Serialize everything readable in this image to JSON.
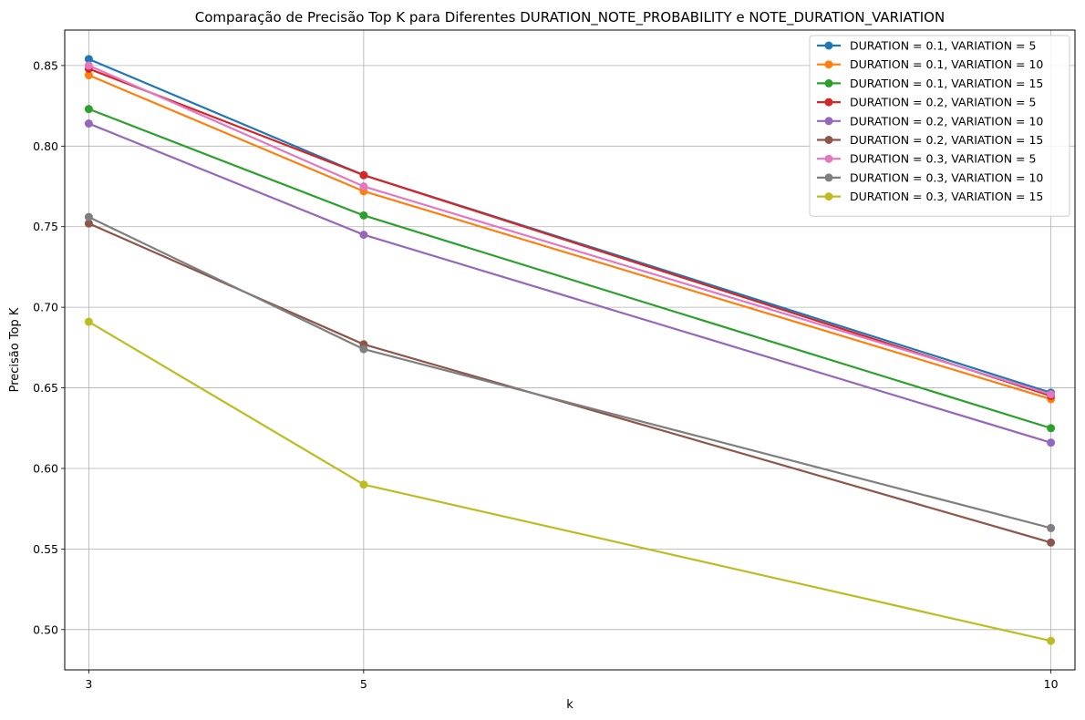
{
  "chart_data": {
    "type": "line",
    "title": "Comparação de Precisão Top K para Diferentes DURATION_NOTE_PROBABILITY e NOTE_DURATION_VARIATION",
    "xlabel": "k",
    "ylabel": "Precisão Top K",
    "x": [
      3,
      5,
      10
    ],
    "xticks": [
      3,
      5,
      10
    ],
    "xtick_labels": [
      "3",
      "5",
      "10"
    ],
    "xlim": [
      2.825,
      10.175
    ],
    "ylim": [
      0.475,
      0.872
    ],
    "yticks": [
      0.5,
      0.55,
      0.6,
      0.65,
      0.7,
      0.75,
      0.8,
      0.85
    ],
    "ytick_labels": [
      "0.50",
      "0.55",
      "0.60",
      "0.65",
      "0.70",
      "0.75",
      "0.80",
      "0.85"
    ],
    "grid": true,
    "legend_position": "top-right",
    "series": [
      {
        "name": "DURATION = 0.1, VARIATION = 5",
        "color": "#1f77b4",
        "values": [
          0.854,
          0.782,
          0.647
        ]
      },
      {
        "name": "DURATION = 0.1, VARIATION = 10",
        "color": "#ff7f0e",
        "values": [
          0.844,
          0.772,
          0.643
        ]
      },
      {
        "name": "DURATION = 0.1, VARIATION = 15",
        "color": "#2ca02c",
        "values": [
          0.823,
          0.757,
          0.625
        ]
      },
      {
        "name": "DURATION = 0.2, VARIATION = 5",
        "color": "#d62728",
        "values": [
          0.848,
          0.782,
          0.645
        ]
      },
      {
        "name": "DURATION = 0.2, VARIATION = 10",
        "color": "#9467bd",
        "values": [
          0.814,
          0.745,
          0.616
        ]
      },
      {
        "name": "DURATION = 0.2, VARIATION = 15",
        "color": "#8c564b",
        "values": [
          0.752,
          0.677,
          0.554
        ]
      },
      {
        "name": "DURATION = 0.3, VARIATION = 5",
        "color": "#e377c2",
        "values": [
          0.85,
          0.775,
          0.646
        ]
      },
      {
        "name": "DURATION = 0.3, VARIATION = 10",
        "color": "#7f7f7f",
        "values": [
          0.756,
          0.674,
          0.563
        ]
      },
      {
        "name": "DURATION = 0.3, VARIATION = 15",
        "color": "#bcbd22",
        "values": [
          0.691,
          0.59,
          0.493
        ]
      }
    ]
  }
}
